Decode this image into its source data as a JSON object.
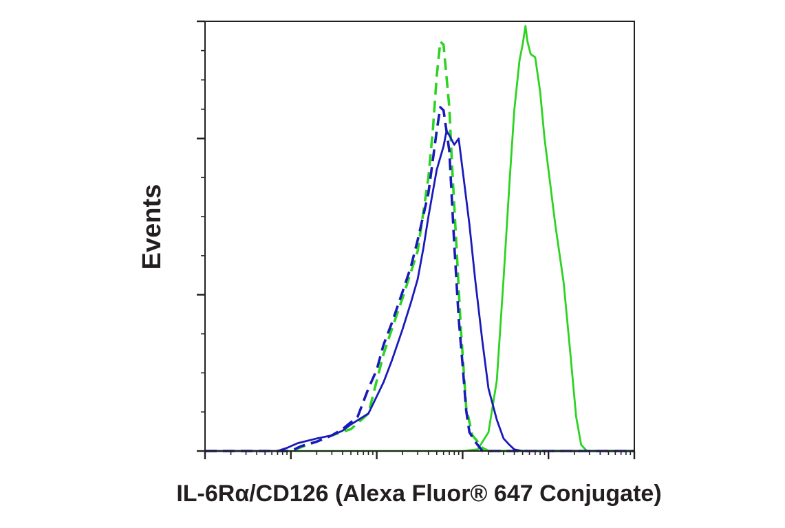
{
  "chart_data": {
    "type": "line",
    "title": "",
    "xlabel": "IL-6Rα/CD126 (Alexa Fluor® 647 Conjugate)",
    "ylabel": "Events",
    "x_scale": "log",
    "xlim": [
      0.1,
      10000
    ],
    "ylim": [
      0,
      275
    ],
    "y_major_ticks": [
      0,
      100,
      200,
      275
    ],
    "grid": false,
    "legend": "none",
    "x_tick_labels_shown": false,
    "y_tick_labels_shown": false,
    "series": [
      {
        "color": "#2cd421",
        "dash": "solid",
        "points": [
          [
            0.1,
            0
          ],
          [
            50,
            0
          ],
          [
            100,
            0
          ],
          [
            150,
            1
          ],
          [
            200,
            12
          ],
          [
            250,
            45
          ],
          [
            300,
            110
          ],
          [
            350,
            170
          ],
          [
            400,
            218
          ],
          [
            460,
            250
          ],
          [
            500,
            260
          ],
          [
            540,
            272
          ],
          [
            570,
            262
          ],
          [
            620,
            254
          ],
          [
            700,
            252
          ],
          [
            800,
            230
          ],
          [
            900,
            200
          ],
          [
            1000,
            180
          ],
          [
            1200,
            145
          ],
          [
            1500,
            108
          ],
          [
            1800,
            62
          ],
          [
            2100,
            22
          ],
          [
            2400,
            4
          ],
          [
            2800,
            0
          ],
          [
            10000,
            0
          ]
        ]
      },
      {
        "color": "#2cd421",
        "dash": "dashed",
        "points": [
          [
            0.1,
            0
          ],
          [
            1,
            0
          ],
          [
            1.4,
            3
          ],
          [
            2,
            6
          ],
          [
            3,
            10
          ],
          [
            5,
            14
          ],
          [
            8,
            24
          ],
          [
            10,
            45
          ],
          [
            12,
            62
          ],
          [
            15,
            78
          ],
          [
            20,
            98
          ],
          [
            30,
            128
          ],
          [
            40,
            175
          ],
          [
            45,
            205
          ],
          [
            50,
            240
          ],
          [
            55,
            262
          ],
          [
            60,
            260
          ],
          [
            70,
            220
          ],
          [
            75,
            185
          ],
          [
            85,
            130
          ],
          [
            95,
            80
          ],
          [
            110,
            28
          ],
          [
            130,
            10
          ],
          [
            150,
            6
          ],
          [
            170,
            2
          ],
          [
            200,
            0
          ],
          [
            10000,
            0
          ]
        ]
      },
      {
        "color": "#1a1aba",
        "dash": "dashed",
        "points": [
          [
            0.1,
            0
          ],
          [
            1,
            0
          ],
          [
            1.3,
            3
          ],
          [
            2,
            6
          ],
          [
            3,
            10
          ],
          [
            4,
            14
          ],
          [
            6,
            22
          ],
          [
            8,
            40
          ],
          [
            10,
            52
          ],
          [
            12,
            68
          ],
          [
            15,
            82
          ],
          [
            20,
            102
          ],
          [
            25,
            118
          ],
          [
            30,
            135
          ],
          [
            40,
            165
          ],
          [
            50,
            205
          ],
          [
            55,
            220
          ],
          [
            60,
            218
          ],
          [
            70,
            192
          ],
          [
            80,
            132
          ],
          [
            90,
            85
          ],
          [
            100,
            55
          ],
          [
            110,
            26
          ],
          [
            120,
            12
          ],
          [
            140,
            6
          ],
          [
            170,
            0
          ],
          [
            10000,
            0
          ]
        ]
      },
      {
        "color": "#1a1aba",
        "dash": "solid",
        "points": [
          [
            0.1,
            0
          ],
          [
            0.7,
            0
          ],
          [
            0.9,
            2
          ],
          [
            1.2,
            5
          ],
          [
            2,
            8
          ],
          [
            3,
            10
          ],
          [
            4,
            13
          ],
          [
            5,
            17
          ],
          [
            8,
            24
          ],
          [
            10,
            35
          ],
          [
            12,
            44
          ],
          [
            15,
            58
          ],
          [
            20,
            78
          ],
          [
            25,
            95
          ],
          [
            30,
            110
          ],
          [
            35,
            130
          ],
          [
            40,
            150
          ],
          [
            50,
            180
          ],
          [
            60,
            195
          ],
          [
            65,
            205
          ],
          [
            70,
            202
          ],
          [
            80,
            196
          ],
          [
            90,
            200
          ],
          [
            100,
            180
          ],
          [
            120,
            145
          ],
          [
            140,
            110
          ],
          [
            170,
            70
          ],
          [
            200,
            40
          ],
          [
            250,
            20
          ],
          [
            300,
            8
          ],
          [
            350,
            4
          ],
          [
            400,
            1
          ],
          [
            500,
            0
          ],
          [
            10000,
            0
          ]
        ]
      }
    ]
  }
}
